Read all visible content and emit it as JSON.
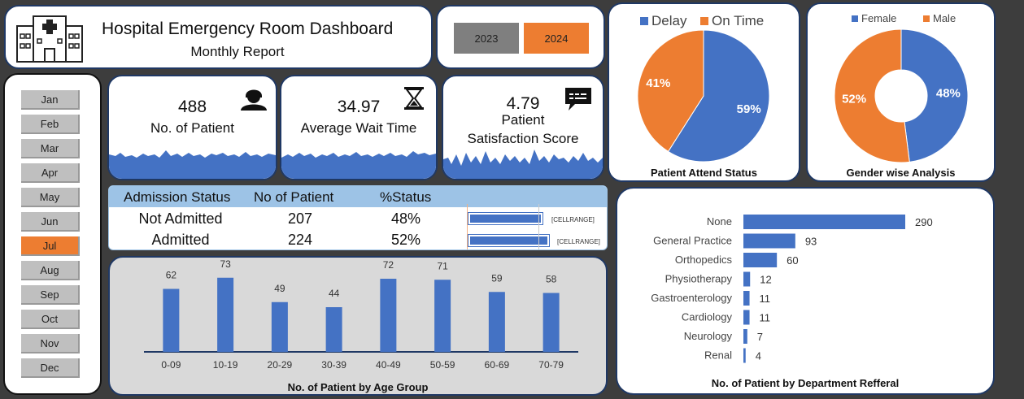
{
  "header": {
    "title": "Hospital Emergency Room Dashboard",
    "subtitle": "Monthly Report"
  },
  "years": [
    "2023",
    "2024"
  ],
  "selected_year": "2024",
  "months": [
    "Jan",
    "Feb",
    "Mar",
    "Apr",
    "May",
    "Jun",
    "Jul",
    "Aug",
    "Sep",
    "Oct",
    "Nov",
    "Dec"
  ],
  "selected_month": "Jul",
  "kpis": {
    "patients": {
      "value": "488",
      "label": "No. of Patient",
      "icon": "patient-icon"
    },
    "wait": {
      "value": "34.97",
      "label": "Average Wait Time",
      "icon": "hourglass-icon"
    },
    "satisfaction": {
      "value": "4.79",
      "label_line1": "Patient",
      "label_line2": "Satisfaction Score",
      "icon": "chat-icon"
    }
  },
  "admission": {
    "headers": [
      "Admission Status",
      "No of Patient",
      "%Status"
    ],
    "rows": [
      {
        "status": "Not Admitted",
        "count": "207",
        "pct": "48%",
        "pct_value": 0.48,
        "tag": "[CELLRANGE]"
      },
      {
        "status": "Admitted",
        "count": "224",
        "pct": "52%",
        "pct_value": 0.52,
        "tag": "[CELLRANGE]"
      }
    ]
  },
  "colors": {
    "blue": "#4472c4",
    "orange": "#ed7d31",
    "navy": "#1f3864"
  },
  "chart_data": [
    {
      "type": "pie",
      "title": "Patient Attend Status",
      "legend": "top",
      "categories": [
        "Delay",
        "On Time"
      ],
      "values": [
        59,
        41
      ],
      "labels": [
        "59%",
        "41%"
      ]
    },
    {
      "type": "pie",
      "title": "Gender wise Analysis",
      "legend": "top",
      "categories": [
        "Female",
        "Male"
      ],
      "values": [
        48,
        52
      ],
      "labels": [
        "48%",
        "52%"
      ]
    },
    {
      "type": "bar",
      "title": "No. of Patient by Age Group",
      "categories": [
        "0-09",
        "10-19",
        "20-29",
        "30-39",
        "40-49",
        "50-59",
        "60-69",
        "70-79"
      ],
      "values": [
        62,
        73,
        49,
        44,
        72,
        71,
        59,
        58
      ],
      "ylim": [
        0,
        80
      ]
    },
    {
      "type": "bar",
      "orientation": "horizontal",
      "title": "No. of Patient by Department Refferal",
      "categories": [
        "None",
        "General Practice",
        "Orthopedics",
        "Physiotherapy",
        "Gastroenterology",
        "Cardiology",
        "Neurology",
        "Renal"
      ],
      "values": [
        290,
        93,
        60,
        12,
        11,
        11,
        7,
        4
      ],
      "xlim": [
        0,
        300
      ]
    }
  ]
}
